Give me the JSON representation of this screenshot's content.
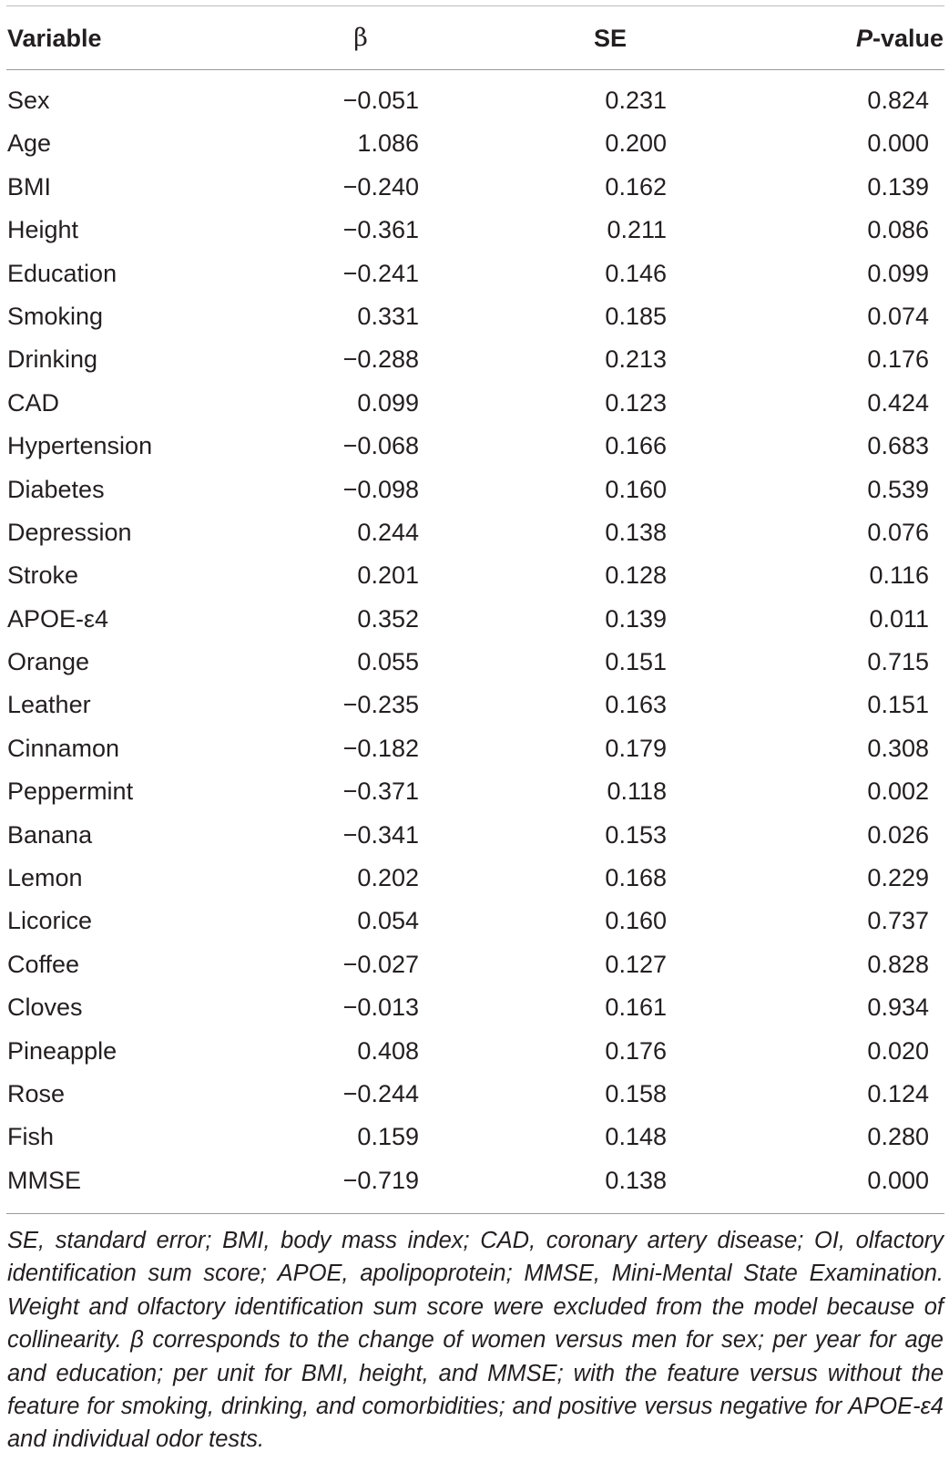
{
  "table": {
    "headers": {
      "variable": "Variable",
      "beta": "β",
      "se": "SE",
      "p_italic": "P",
      "p_rest": "-value"
    },
    "rows": [
      {
        "variable": "Sex",
        "beta": "−0.051",
        "se": "0.231",
        "p": "0.824"
      },
      {
        "variable": "Age",
        "beta": "1.086",
        "se": "0.200",
        "p": "0.000"
      },
      {
        "variable": "BMI",
        "beta": "−0.240",
        "se": "0.162",
        "p": "0.139"
      },
      {
        "variable": "Height",
        "beta": "−0.361",
        "se": "0.211",
        "p": "0.086"
      },
      {
        "variable": "Education",
        "beta": "−0.241",
        "se": "0.146",
        "p": "0.099"
      },
      {
        "variable": "Smoking",
        "beta": "0.331",
        "se": "0.185",
        "p": "0.074"
      },
      {
        "variable": "Drinking",
        "beta": "−0.288",
        "se": "0.213",
        "p": "0.176"
      },
      {
        "variable": "CAD",
        "beta": "0.099",
        "se": "0.123",
        "p": "0.424"
      },
      {
        "variable": "Hypertension",
        "beta": "−0.068",
        "se": "0.166",
        "p": "0.683"
      },
      {
        "variable": "Diabetes",
        "beta": "−0.098",
        "se": "0.160",
        "p": "0.539"
      },
      {
        "variable": "Depression",
        "beta": "0.244",
        "se": "0.138",
        "p": "0.076"
      },
      {
        "variable": "Stroke",
        "beta": "0.201",
        "se": "0.128",
        "p": "0.116"
      },
      {
        "variable": "APOE-ε4",
        "beta": "0.352",
        "se": "0.139",
        "p": "0.011"
      },
      {
        "variable": "Orange",
        "beta": "0.055",
        "se": "0.151",
        "p": "0.715"
      },
      {
        "variable": "Leather",
        "beta": "−0.235",
        "se": "0.163",
        "p": "0.151"
      },
      {
        "variable": "Cinnamon",
        "beta": "−0.182",
        "se": "0.179",
        "p": "0.308"
      },
      {
        "variable": "Peppermint",
        "beta": "−0.371",
        "se": "0.118",
        "p": "0.002"
      },
      {
        "variable": "Banana",
        "beta": "−0.341",
        "se": "0.153",
        "p": "0.026"
      },
      {
        "variable": "Lemon",
        "beta": "0.202",
        "se": "0.168",
        "p": "0.229"
      },
      {
        "variable": "Licorice",
        "beta": "0.054",
        "se": "0.160",
        "p": "0.737"
      },
      {
        "variable": "Coffee",
        "beta": "−0.027",
        "se": "0.127",
        "p": "0.828"
      },
      {
        "variable": "Cloves",
        "beta": "−0.013",
        "se": "0.161",
        "p": "0.934"
      },
      {
        "variable": "Pineapple",
        "beta": "0.408",
        "se": "0.176",
        "p": "0.020"
      },
      {
        "variable": "Rose",
        "beta": "−0.244",
        "se": "0.158",
        "p": "0.124"
      },
      {
        "variable": "Fish",
        "beta": "0.159",
        "se": "0.148",
        "p": "0.280"
      },
      {
        "variable": "MMSE",
        "beta": "−0.719",
        "se": "0.138",
        "p": "0.000"
      }
    ]
  },
  "footnote": "SE, standard error; BMI, body mass index; CAD, coronary artery disease; OI, olfactory identification sum score; APOE, apolipoprotein; MMSE, Mini-Mental State Examination. Weight and olfactory identification sum score were excluded from the model because of collinearity. β corresponds to the change of women versus men for sex; per year for age and education; per unit for BMI, height, and MMSE; with the feature versus without the feature for smoking, drinking, and comorbidities; and positive versus negative for APOE-ε4 and individual odor tests.",
  "colors": {
    "text": "#231f20",
    "rule": "#9a9a9a"
  }
}
